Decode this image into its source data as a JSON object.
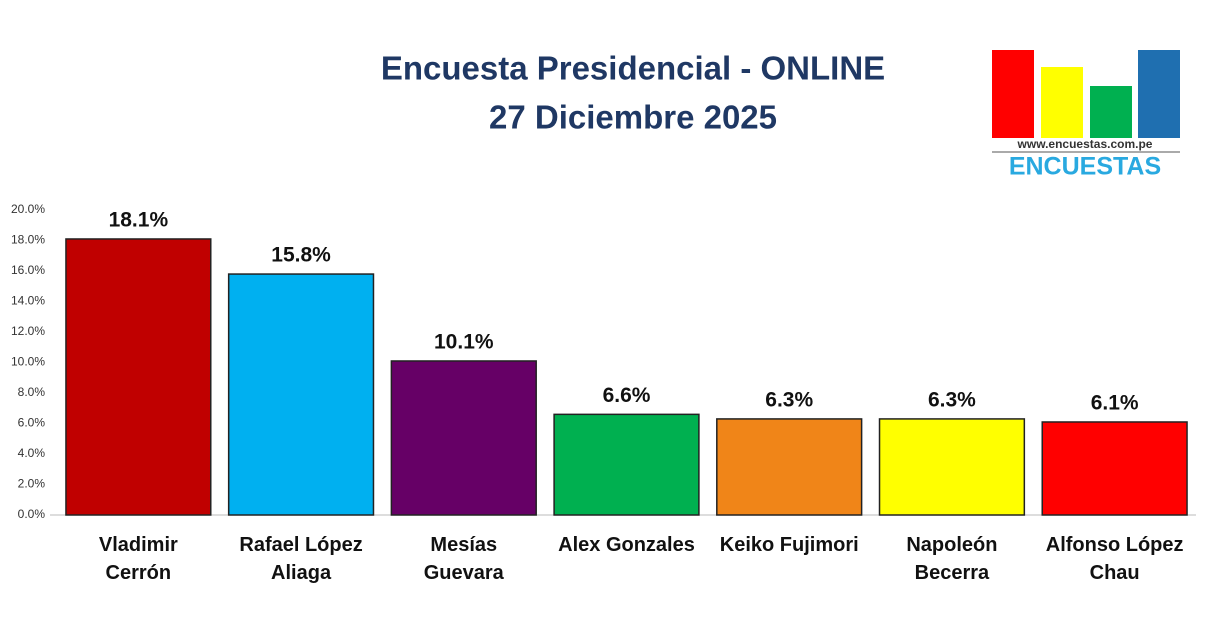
{
  "chart_data": {
    "type": "bar",
    "title": [
      "Encuesta Presidencial - ONLINE",
      "27 Diciembre 2025"
    ],
    "categories": [
      "Vladimir Cerrón",
      "Rafael López Aliaga",
      "Mesías Guevara",
      "Alex Gonzales",
      "Keiko Fujimori",
      "Napoleón Becerra",
      "Alfonso López Chau"
    ],
    "values": [
      18.1,
      15.8,
      10.1,
      6.6,
      6.3,
      6.3,
      6.1
    ],
    "value_labels": [
      "18.1%",
      "15.8%",
      "10.1%",
      "6.6%",
      "6.3%",
      "6.3%",
      "6.1%"
    ],
    "colors": [
      "#c00000",
      "#00b0f0",
      "#660066",
      "#00b050",
      "#f08518",
      "#ffff00",
      "#ff0000"
    ],
    "ylim": [
      0,
      20
    ],
    "yticks": [
      {
        "value": 0,
        "label": "0.0%"
      },
      {
        "value": 2,
        "label": "2.0%"
      },
      {
        "value": 4,
        "label": "4.0%"
      },
      {
        "value": 6,
        "label": "6.0%"
      },
      {
        "value": 8,
        "label": "8.0%"
      },
      {
        "value": 10,
        "label": "10.0%"
      },
      {
        "value": 12,
        "label": "12.0%"
      },
      {
        "value": 14,
        "label": "14.0%"
      },
      {
        "value": 16,
        "label": "16.0%"
      },
      {
        "value": 18,
        "label": "18.0%"
      },
      {
        "value": 20,
        "label": "20.0%"
      }
    ],
    "grid": false
  },
  "logo": {
    "url": "www.encuestas.com.pe",
    "name": "ENCUESTAS"
  }
}
